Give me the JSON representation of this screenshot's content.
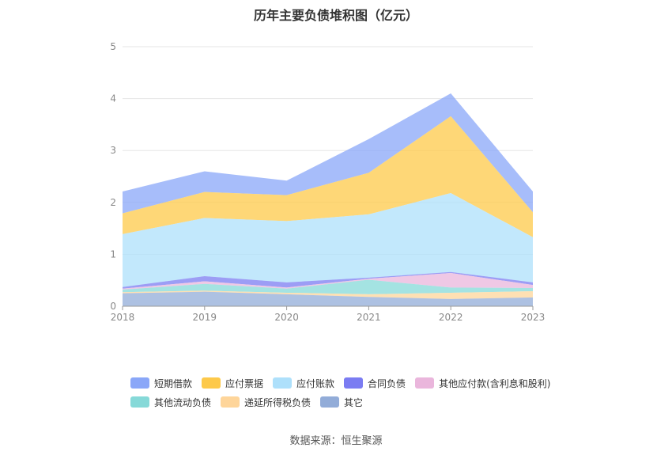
{
  "chart_data": {
    "type": "area",
    "stacked": true,
    "title": "历年主要负债堆积图（亿元）",
    "x": [
      "2018",
      "2019",
      "2020",
      "2021",
      "2022",
      "2023"
    ],
    "ylim": [
      0,
      5
    ],
    "yticks": [
      "0",
      "1",
      "2",
      "3",
      "4",
      "5"
    ],
    "grid": true,
    "legend_position": "bottom",
    "series": [
      {
        "name": "短期借款",
        "color": "#8aa7f8",
        "values": [
          0.42,
          0.4,
          0.28,
          0.65,
          0.44,
          0.4
        ]
      },
      {
        "name": "应付票据",
        "color": "#fdc94a",
        "values": [
          0.4,
          0.5,
          0.5,
          0.8,
          1.48,
          0.48
        ]
      },
      {
        "name": "应付账款",
        "color": "#aee0fb",
        "values": [
          1.02,
          1.12,
          1.18,
          1.22,
          1.52,
          0.87
        ]
      },
      {
        "name": "合同负债",
        "color": "#7b7cf2",
        "values": [
          0.03,
          0.1,
          0.1,
          0.02,
          0.02,
          0.05
        ]
      },
      {
        "name": "其他应付款(含利息和股利)",
        "color": "#eab6dc",
        "values": [
          0.02,
          0.05,
          0.02,
          0.02,
          0.28,
          0.06
        ]
      },
      {
        "name": "其他流动负债",
        "color": "#86d9d8",
        "values": [
          0.05,
          0.13,
          0.08,
          0.28,
          0.1,
          0.06
        ]
      },
      {
        "name": "递延所得税负债",
        "color": "#fed59a",
        "values": [
          0.02,
          0.02,
          0.03,
          0.05,
          0.12,
          0.12
        ]
      },
      {
        "name": "其它",
        "color": "#92acd8",
        "values": [
          0.25,
          0.28,
          0.23,
          0.18,
          0.14,
          0.17
        ]
      }
    ]
  },
  "legend": {
    "row1": [
      "短期借款",
      "应付票据",
      "应付账款",
      "合同负债",
      "其他应付款(含利息和股利)"
    ],
    "row2": [
      "其他流动负债",
      "递延所得税负债",
      "其它"
    ]
  },
  "footer": {
    "source": "数据来源：恒生聚源"
  }
}
